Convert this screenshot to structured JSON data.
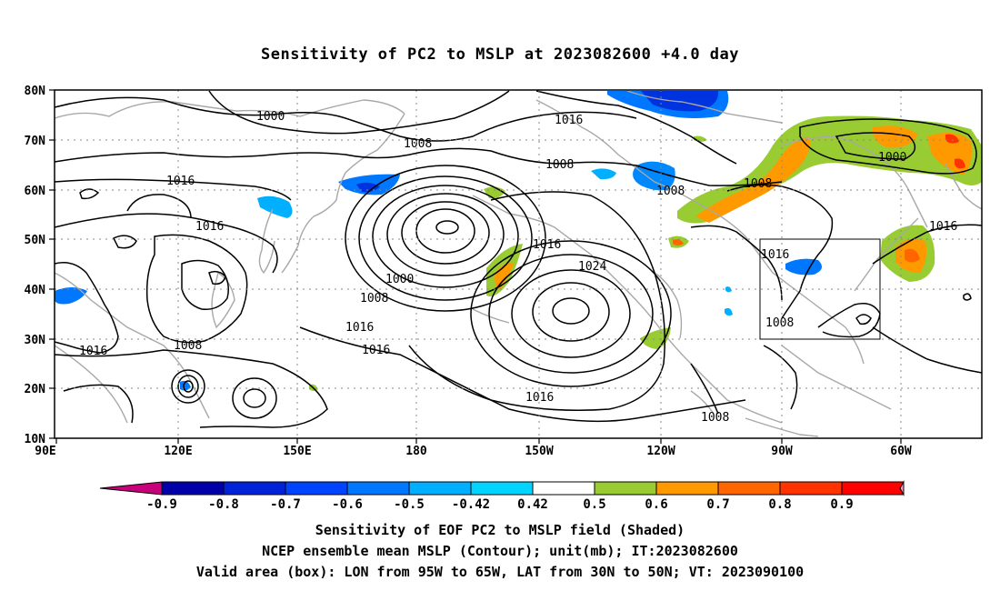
{
  "title": "Sensitivity of PC2 to MSLP at 2023082600 +4.0 day",
  "map": {
    "lon_ticks": [
      "90E",
      "120E",
      "150E",
      "180",
      "150W",
      "120W",
      "90W",
      "60W"
    ],
    "lat_ticks": [
      "80N",
      "70N",
      "60N",
      "50N",
      "40N",
      "30N",
      "20N",
      "10N"
    ],
    "valid_box": {
      "lon": [
        "95W",
        "65W"
      ],
      "lat": [
        "30N",
        "50N"
      ]
    },
    "contour_labels": [
      "1000",
      "1008",
      "1016",
      "1008",
      "1016",
      "1016",
      "1008",
      "1000",
      "1008",
      "1016",
      "1016",
      "1024",
      "1016",
      "1016",
      "1008",
      "1008",
      "1000",
      "1016",
      "1016",
      "1008",
      "1008",
      "1016"
    ]
  },
  "colorbar": {
    "labels": [
      "-0.9",
      "-0.8",
      "-0.7",
      "-0.6",
      "-0.5",
      "-0.42",
      "0.42",
      "0.5",
      "0.6",
      "0.7",
      "0.8",
      "0.9"
    ],
    "colors": [
      "#c8007a",
      "#0000a8",
      "#0022d8",
      "#0044ff",
      "#0077ff",
      "#00b0ff",
      "#00d4ff",
      "#ffffff",
      "#99cc33",
      "#ff9900",
      "#ff6600",
      "#ff3300",
      "#ff0000",
      "#ff99cc"
    ]
  },
  "caption": {
    "line1": "Sensitivity of EOF PC2 to MSLP field (Shaded)",
    "line2": "NCEP ensemble mean MSLP (Contour); unit(mb); IT:2023082600",
    "line3": "Valid area (box): LON from 95W to 65W, LAT from 30N to 50N; VT: 2023090100"
  }
}
